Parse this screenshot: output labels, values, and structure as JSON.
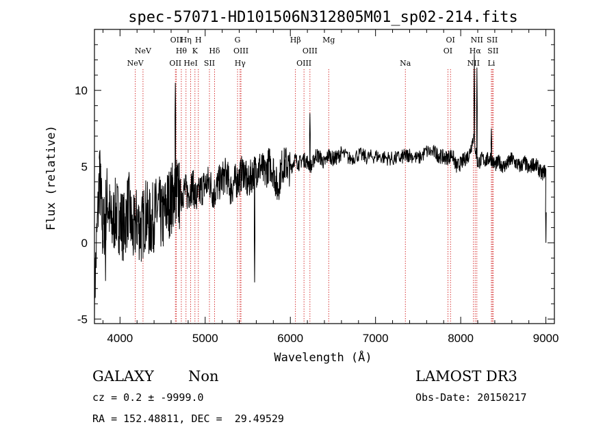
{
  "chart_data": {
    "type": "line",
    "title": "spec-57071-HD101506N312805M01_sp02-214.fits",
    "xlabel": "Wavelength (Å)",
    "ylabel": "Flux (relative)",
    "xlim": [
      3700,
      9100
    ],
    "ylim": [
      -5.3,
      14
    ],
    "xticks": [
      4000,
      5000,
      6000,
      7000,
      8000,
      9000
    ],
    "yticks": [
      -5,
      0,
      5,
      10
    ],
    "series": [
      {
        "name": "spectrum",
        "x": [
          3700,
          3760,
          3800,
          3850,
          3900,
          3950,
          4000,
          4050,
          4100,
          4150,
          4200,
          4250,
          4300,
          4350,
          4400,
          4450,
          4500,
          4550,
          4600,
          4620,
          4660,
          4700,
          4750,
          4800,
          4850,
          4900,
          4950,
          5000,
          5050,
          5100,
          5150,
          5200,
          5250,
          5300,
          5350,
          5400,
          5450,
          5500,
          5550,
          5600,
          5650,
          5700,
          5750,
          5800,
          5850,
          5900,
          5950,
          6000,
          6050,
          6100,
          6150,
          6200,
          6250,
          6300,
          6350,
          6400,
          6450,
          6500,
          6550,
          6600,
          6700,
          6800,
          6900,
          7000,
          7100,
          7200,
          7300,
          7350,
          7400,
          7500,
          7600,
          7700,
          7750,
          7800,
          7850,
          7900,
          7950,
          8000,
          8050,
          8100,
          8150,
          8200,
          8250,
          8300,
          8350,
          8400,
          8450,
          8500,
          8550,
          8600,
          8650,
          8700,
          8750,
          8800,
          8850,
          8900,
          8950,
          9000
        ],
        "y": [
          -3.5,
          4.5,
          0.5,
          3.0,
          1.0,
          2.0,
          1.5,
          1.0,
          2.5,
          0.5,
          1.5,
          0.8,
          2.0,
          1.2,
          1.8,
          2.2,
          1.5,
          2.5,
          2.8,
          3.2,
          3.5,
          3.0,
          3.5,
          3.2,
          3.8,
          2.8,
          3.5,
          3.8,
          4.0,
          3.2,
          3.8,
          4.2,
          4.5,
          3.5,
          4.0,
          4.2,
          4.8,
          3.8,
          4.5,
          4.8,
          5.0,
          4.5,
          5.2,
          4.8,
          3.5,
          5.0,
          5.2,
          4.8,
          5.5,
          5.2,
          5.5,
          5.3,
          5.0,
          5.8,
          5.6,
          5.2,
          5.8,
          5.5,
          5.6,
          5.9,
          5.5,
          5.8,
          5.6,
          5.7,
          5.6,
          5.5,
          5.6,
          5.7,
          5.8,
          5.5,
          6.0,
          5.9,
          5.7,
          5.6,
          5.6,
          5.8,
          5.0,
          5.2,
          5.5,
          5.8,
          7.0,
          5.2,
          5.5,
          5.4,
          5.6,
          5.1,
          5.3,
          5.0,
          5.2,
          5.5,
          5.2,
          5.0,
          5.3,
          4.8,
          5.2,
          5.0,
          4.5,
          4.8
        ]
      }
    ],
    "peaks": [
      {
        "x": 4650,
        "y": 10.5
      },
      {
        "x": 6230,
        "y": 8.5
      },
      {
        "x": 8160,
        "y": 12.4
      },
      {
        "x": 8190,
        "y": 11.5
      },
      {
        "x": 8360,
        "y": 7.5
      },
      {
        "x": 3760,
        "y": 6.0
      },
      {
        "x": 3830,
        "y": -2.5
      },
      {
        "x": 5580,
        "y": -2.6
      },
      {
        "x": 9000,
        "y": 0.0
      }
    ],
    "spectral_lines": [
      {
        "label": "NeV",
        "x": 4180,
        "row": 3
      },
      {
        "label": "NeV",
        "x": 4270,
        "row": 2
      },
      {
        "label": "OII",
        "x": 4650,
        "row": 3
      },
      {
        "label": "OII",
        "x": 4660,
        "row": 1
      },
      {
        "label": "Hθ",
        "x": 4720,
        "row": 2
      },
      {
        "label": "Hη",
        "x": 4775,
        "row": 1
      },
      {
        "label": "HeI",
        "x": 4830,
        "row": 3
      },
      {
        "label": "K",
        "x": 4880,
        "row": 2
      },
      {
        "label": "H",
        "x": 4920,
        "row": 1
      },
      {
        "label": "SII",
        "x": 5050,
        "row": 3
      },
      {
        "label": "Hδ",
        "x": 5110,
        "row": 2
      },
      {
        "label": "G",
        "x": 5380,
        "row": 1
      },
      {
        "label": "OIII",
        "x": 5420,
        "row": 2
      },
      {
        "label": "Hγ",
        "x": 5410,
        "row": 3
      },
      {
        "label": "Hβ",
        "x": 6060,
        "row": 1
      },
      {
        "label": "OIII",
        "x": 6160,
        "row": 3
      },
      {
        "label": "OIII",
        "x": 6230,
        "row": 2
      },
      {
        "label": "Mg",
        "x": 6450,
        "row": 1
      },
      {
        "label": "Na",
        "x": 7350,
        "row": 3
      },
      {
        "label": "OI",
        "x": 7880,
        "row": 1
      },
      {
        "label": "OI",
        "x": 7850,
        "row": 2
      },
      {
        "label": "NII",
        "x": 8150,
        "row": 3
      },
      {
        "label": "NII",
        "x": 8190,
        "row": 1
      },
      {
        "label": "Hα",
        "x": 8170,
        "row": 2
      },
      {
        "label": "SII",
        "x": 8370,
        "row": 1
      },
      {
        "label": "SII",
        "x": 8380,
        "row": 2
      },
      {
        "label": "Li",
        "x": 8360,
        "row": 3
      }
    ]
  },
  "info": {
    "object_class": "GALAXY",
    "subclass": "Non",
    "survey": "LAMOST DR3",
    "redshift_line": "cz = 0.2 ± -9999.0",
    "obs_date_line": "Obs-Date: 20150217",
    "coords_line": "RA = 152.48811, DEC =  29.49529"
  }
}
